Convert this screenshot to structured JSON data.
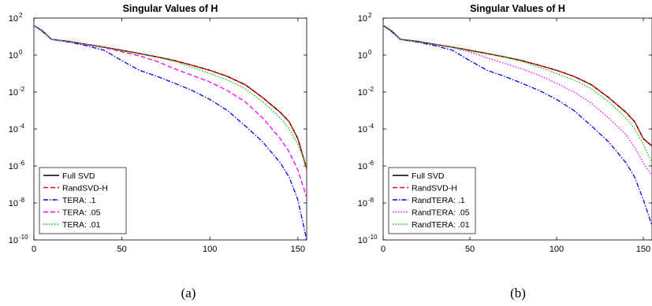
{
  "figure": {
    "captions": [
      "(a)",
      "(b)"
    ]
  },
  "chart_data": [
    {
      "type": "line",
      "title": "Singular Values of H",
      "caption": "(a)",
      "xlabel": "",
      "ylabel": "",
      "xlim": [
        0,
        155
      ],
      "ylim": [
        1e-10,
        100
      ],
      "yscale": "log",
      "x_ticks": [
        "0",
        "50",
        "100",
        "150"
      ],
      "y_tick_exponents": [
        "2",
        "0",
        "-2",
        "-4",
        "-6",
        "-8",
        "-10"
      ],
      "y_tick_base": "10",
      "legend_position": "bottom-left",
      "x": [
        0,
        5,
        10,
        20,
        30,
        40,
        50,
        60,
        70,
        80,
        90,
        100,
        110,
        120,
        130,
        140,
        145,
        150,
        155
      ],
      "series": [
        {
          "name": "Full SVD",
          "color": "#000000",
          "style": "solid",
          "values": [
            40,
            20,
            7,
            5.5,
            3.8,
            2.7,
            1.8,
            1.2,
            0.8,
            0.5,
            0.28,
            0.15,
            0.07,
            0.025,
            0.005,
            0.0008,
            0.00025,
            3e-05,
            7e-07
          ]
        },
        {
          "name": "RandSVD-H",
          "color": "#ff0000",
          "style": "dashed",
          "values": [
            40,
            20,
            7,
            5.5,
            3.8,
            2.7,
            1.8,
            1.2,
            0.8,
            0.5,
            0.28,
            0.15,
            0.07,
            0.025,
            0.005,
            0.0008,
            0.00025,
            3e-05,
            7e-07
          ]
        },
        {
          "name": "TERA: .1",
          "color": "#0000ff",
          "style": "dashdot",
          "values": [
            40,
            18,
            7,
            5,
            3.2,
            1.8,
            0.5,
            0.15,
            0.07,
            0.03,
            0.012,
            0.004,
            0.001,
            0.00015,
            2e-05,
            1.5e-06,
            2.5e-07,
            1.5e-08,
            1e-10
          ]
        },
        {
          "name": "TERA: .05",
          "color": "#ff00ff",
          "style": "dashed",
          "values": [
            40,
            19,
            7,
            5.3,
            3.6,
            2.5,
            1.5,
            0.9,
            0.45,
            0.18,
            0.08,
            0.035,
            0.012,
            0.003,
            0.0004,
            3e-05,
            6e-06,
            6e-07,
            2e-08
          ]
        },
        {
          "name": "TERA: .01",
          "color": "#00cc00",
          "style": "dotted",
          "values": [
            40,
            20,
            7,
            5.5,
            3.8,
            2.7,
            1.7,
            1.15,
            0.75,
            0.45,
            0.22,
            0.1,
            0.045,
            0.015,
            0.003,
            0.0004,
            0.0001,
            1.5e-05,
            1e-06
          ]
        }
      ]
    },
    {
      "type": "line",
      "title": "Singular Values of H",
      "caption": "(b)",
      "xlabel": "",
      "ylabel": "",
      "xlim": [
        0,
        155
      ],
      "ylim": [
        1e-10,
        100
      ],
      "yscale": "log",
      "x_ticks": [
        "0",
        "50",
        "100",
        "150"
      ],
      "y_tick_exponents": [
        "2",
        "0",
        "-2",
        "-4",
        "-6",
        "-8",
        "-10"
      ],
      "y_tick_base": "10",
      "legend_position": "bottom-left",
      "x": [
        0,
        5,
        10,
        20,
        30,
        40,
        50,
        60,
        70,
        80,
        90,
        100,
        110,
        120,
        130,
        140,
        145,
        150,
        155
      ],
      "series": [
        {
          "name": "Full SVD",
          "color": "#000000",
          "style": "solid",
          "values": [
            40,
            20,
            7,
            5.5,
            3.8,
            2.7,
            1.8,
            1.2,
            0.8,
            0.5,
            0.28,
            0.15,
            0.07,
            0.025,
            0.005,
            0.0008,
            0.00025,
            3e-05,
            1.2e-05
          ]
        },
        {
          "name": "RandSVD-H",
          "color": "#ff0000",
          "style": "dashed",
          "values": [
            40,
            20,
            7,
            5.5,
            3.8,
            2.7,
            1.8,
            1.2,
            0.8,
            0.5,
            0.28,
            0.15,
            0.07,
            0.025,
            0.005,
            0.0008,
            0.00025,
            3e-05,
            1.2e-05
          ]
        },
        {
          "name": "RandTERA: .1",
          "color": "#0000ff",
          "style": "dashdot",
          "values": [
            40,
            18,
            7,
            5,
            3.2,
            1.8,
            0.5,
            0.15,
            0.07,
            0.03,
            0.012,
            0.004,
            0.001,
            0.00015,
            2e-05,
            1.5e-06,
            2.5e-07,
            1.5e-08,
            6e-10
          ]
        },
        {
          "name": "RandTERA: .05",
          "color": "#ff00ff",
          "style": "dotted",
          "values": [
            40,
            19,
            7,
            5.3,
            3.6,
            2.5,
            1.5,
            0.7,
            0.35,
            0.18,
            0.08,
            0.03,
            0.01,
            0.0025,
            0.0004,
            5e-05,
            1e-05,
            1.5e-06,
            3e-07
          ]
        },
        {
          "name": "RandTERA: .01",
          "color": "#00cc00",
          "style": "dotted",
          "values": [
            40,
            20,
            7,
            5.5,
            3.8,
            2.7,
            1.7,
            1.15,
            0.75,
            0.45,
            0.22,
            0.1,
            0.045,
            0.015,
            0.003,
            0.0004,
            0.0001,
            1.5e-05,
            1.5e-06
          ]
        }
      ]
    }
  ]
}
